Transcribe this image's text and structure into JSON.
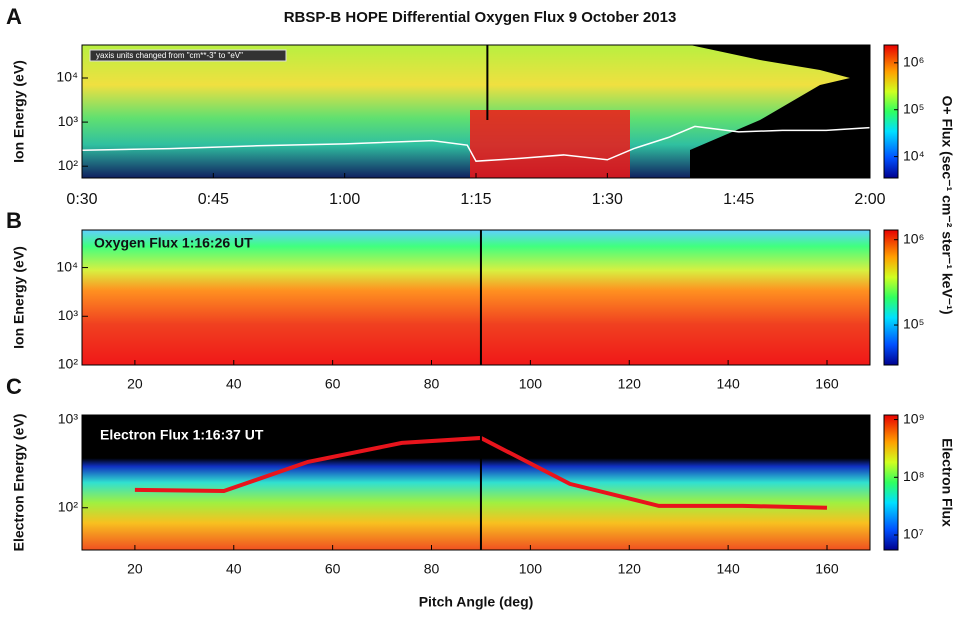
{
  "title": "RBSP-B HOPE   Differential Oxygen Flux    9 October 2013",
  "chart_data": [
    {
      "type": "spectrogram",
      "panel": "A",
      "ylabel": "Ion Energy (eV)",
      "annotation": "yaxis units changed from \"cm**-3\" to \"eV\"",
      "log_y": true,
      "xlim": [
        30,
        120
      ],
      "ylim": [
        54,
        56000
      ],
      "xticks": [
        {
          "value": 30,
          "label": "0:30"
        },
        {
          "value": 45,
          "label": "0:45"
        },
        {
          "value": 60,
          "label": "1:00"
        },
        {
          "value": 75,
          "label": "1:15"
        },
        {
          "value": 90,
          "label": "1:30"
        },
        {
          "value": 105,
          "label": "1:45"
        },
        {
          "value": 120,
          "label": "2:00"
        }
      ],
      "yticks": [
        {
          "value": 100,
          "label": "10²"
        },
        {
          "value": 1000,
          "label": "10³"
        },
        {
          "value": 10000,
          "label": "10⁴"
        }
      ],
      "marker_x": 76.3,
      "series": [
        {
          "color": "#ffffff",
          "x": [
            30,
            40,
            50,
            60,
            70,
            74,
            75,
            80,
            85,
            90,
            93,
            97,
            100,
            105,
            110,
            115,
            120
          ],
          "values": [
            230,
            250,
            290,
            320,
            380,
            300,
            130,
            150,
            180,
            140,
            250,
            450,
            800,
            600,
            650,
            650,
            750
          ]
        }
      ],
      "colorbar": {
        "label": "O+ Flux (sec⁻¹ cm⁻² ster⁻¹ keV⁻¹)",
        "lim": [
          3500,
          2400000
        ],
        "ticks": [
          {
            "value": 10000,
            "label": "10⁴"
          },
          {
            "value": 100000,
            "label": "10⁵"
          },
          {
            "value": 1000000,
            "label": "10⁶"
          }
        ]
      }
    },
    {
      "type": "spectrogram",
      "panel": "B",
      "ylabel": "Ion Energy (eV)",
      "annotation": "Oxygen Flux    1:16:26 UT",
      "log_y": true,
      "xlim": [
        9.3,
        168.7
      ],
      "ylim": [
        100,
        59000
      ],
      "xticks": [
        20,
        40,
        60,
        80,
        100,
        120,
        140,
        160
      ],
      "yticks": [
        {
          "value": 100,
          "label": "10²"
        },
        {
          "value": 1000,
          "label": "10³"
        },
        {
          "value": 10000,
          "label": "10⁴"
        }
      ],
      "marker_x": 90,
      "colorbar": {
        "lim": [
          34000,
          1300000
        ],
        "ticks": [
          {
            "value": 100000,
            "label": "10⁵"
          },
          {
            "value": 1000000,
            "label": "10⁶"
          }
        ]
      }
    },
    {
      "type": "spectrogram",
      "panel": "C",
      "ylabel": "Electron Energy (eV)",
      "xlabel": "Pitch Angle (deg)",
      "annotation": "Electron Flux    1:16:37 UT",
      "log_y": true,
      "xlim": [
        9.3,
        168.7
      ],
      "ylim": [
        33,
        1140
      ],
      "xticks": [
        20,
        40,
        60,
        80,
        100,
        120,
        140,
        160
      ],
      "yticks": [
        {
          "value": 100,
          "label": "10²"
        },
        {
          "value": 1000,
          "label": "10³"
        }
      ],
      "marker_x": 90,
      "series": [
        {
          "color": "#e8141c",
          "x": [
            20,
            38,
            55,
            74,
            90,
            108,
            126,
            143,
            160
          ],
          "values": [
            160,
            155,
            333,
            548,
            624,
            187,
            105,
            105,
            100
          ]
        }
      ],
      "colorbar": {
        "label": "Electron Flux",
        "lim": [
          5500000,
          1200000000
        ],
        "ticks": [
          {
            "value": 10000000,
            "label": "10⁷"
          },
          {
            "value": 100000000,
            "label": "10⁸"
          },
          {
            "value": 1000000000,
            "label": "10⁹"
          }
        ]
      }
    }
  ]
}
